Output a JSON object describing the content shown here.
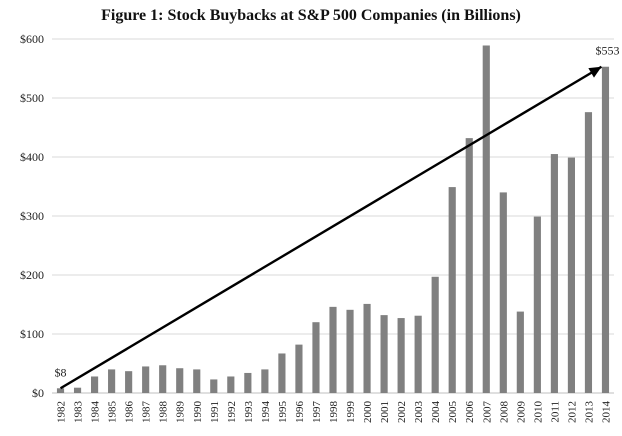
{
  "chart_data": {
    "type": "bar",
    "title": "Figure 1: Stock Buybacks at S&P 500 Companies (in Billions)",
    "xlabel": "",
    "ylabel": "",
    "ylim": [
      0,
      600
    ],
    "yticks": [
      "$0",
      "$100",
      "$200",
      "$300",
      "$400",
      "$500",
      "$600"
    ],
    "grid": true,
    "bar_color": "#808080",
    "categories": [
      "1982",
      "1983",
      "1984",
      "1985",
      "1986",
      "1987",
      "1988",
      "1989",
      "1990",
      "1991",
      "1992",
      "1993",
      "1994",
      "1995",
      "1996",
      "1997",
      "1998",
      "1999",
      "2000",
      "2001",
      "2002",
      "2003",
      "2004",
      "2005",
      "2006",
      "2007",
      "2008",
      "2009",
      "2010",
      "2011",
      "2012",
      "2013",
      "2014"
    ],
    "values": [
      8,
      9,
      28,
      40,
      37,
      45,
      47,
      42,
      40,
      23,
      28,
      34,
      40,
      67,
      82,
      120,
      146,
      141,
      151,
      132,
      127,
      131,
      197,
      349,
      432,
      589,
      340,
      138,
      299,
      405,
      399,
      476,
      553
    ],
    "trend_line": {
      "from_category": "1982",
      "to_category": "2014",
      "from_value": 8,
      "to_value": 553
    },
    "annotations": [
      {
        "category": "1982",
        "text": "$8"
      },
      {
        "category": "2014",
        "text": "$553"
      }
    ]
  }
}
